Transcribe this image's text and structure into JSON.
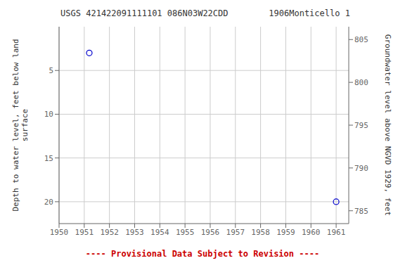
{
  "chart_data": {
    "type": "scatter",
    "title": "USGS 421422091111101 086N03W22CDD        1906Monticello 1",
    "x": [
      1951.2,
      1961.0
    ],
    "values": [
      3.0,
      20.0
    ],
    "color": "#0000cc",
    "marker": "circle",
    "xlim": [
      1950,
      1961.5
    ],
    "xticks": [
      1950,
      1951,
      1952,
      1953,
      1954,
      1955,
      1956,
      1957,
      1958,
      1959,
      1960,
      1961
    ],
    "ylim": [
      22.5,
      0
    ],
    "yticks": [
      5,
      10,
      15,
      20
    ],
    "y2lim": [
      783.5,
      806.5
    ],
    "y2ticks": [
      785,
      790,
      795,
      800,
      805
    ],
    "ylabel": "Depth to water level, feet below land\n  surface",
    "y2label": "Groundwater level above NGVD 1929, feet",
    "grid": true,
    "annotations": [
      {
        "text": "---- Provisional Data Subject to Revision ----",
        "color": "#cc0000"
      }
    ]
  }
}
